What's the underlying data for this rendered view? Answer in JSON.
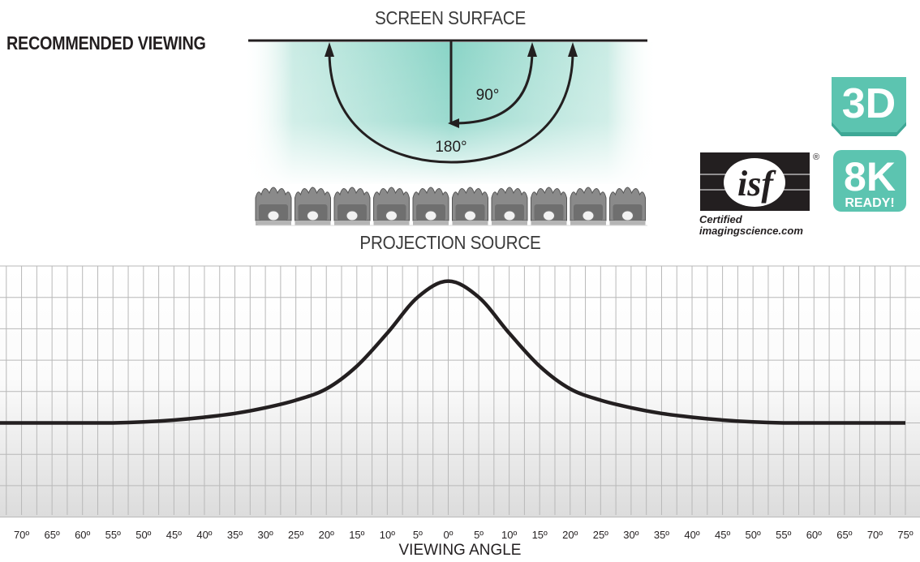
{
  "labels": {
    "recommended_viewing": "RECOMMENDED VIEWING",
    "screen_surface": "SCREEN SURFACE",
    "projection_source": "PROJECTION SOURCE",
    "angle_90": "90°",
    "angle_180": "180°",
    "x_axis": "VIEWING ANGLE"
  },
  "badges": {
    "three_d": "3D",
    "eight_k": "8K",
    "ready": "READY!",
    "isf_logo": "isf",
    "registered": "®",
    "isf_certified": "Certified",
    "isf_site": "imagingscience.com"
  },
  "colors": {
    "viewing_zone": "#7ccfc0",
    "badge_teal": "#5cc4b0",
    "curve": "#231f20",
    "grid": "#b8b8b8"
  },
  "seat_count": 10,
  "chart_data": {
    "type": "line",
    "xlabel": "VIEWING ANGLE",
    "x_ticks": [
      "75º",
      "70º",
      "65º",
      "60º",
      "55º",
      "50º",
      "45º",
      "40º",
      "35º",
      "30º",
      "25º",
      "20º",
      "15º",
      "10º",
      "5º",
      "0º",
      "5º",
      "10º",
      "15º",
      "20º",
      "25º",
      "30º",
      "35º",
      "40º",
      "45º",
      "50º",
      "55º",
      "60º",
      "65º",
      "70º",
      "75º"
    ],
    "x": [
      -75,
      -70,
      -65,
      -60,
      -55,
      -50,
      -45,
      -40,
      -35,
      -30,
      -25,
      -20,
      -15,
      -10,
      -5,
      0,
      5,
      10,
      15,
      20,
      25,
      30,
      35,
      40,
      45,
      50,
      55,
      60,
      65,
      70,
      75
    ],
    "y": [
      1.0,
      1.0,
      1.0,
      1.0,
      1.0,
      1.01,
      1.03,
      1.06,
      1.1,
      1.16,
      1.24,
      1.36,
      1.6,
      1.95,
      2.33,
      2.5,
      2.33,
      1.95,
      1.6,
      1.36,
      1.24,
      1.16,
      1.1,
      1.06,
      1.03,
      1.01,
      1.0,
      1.0,
      1.0,
      1.0,
      1.0
    ],
    "grid": true
  }
}
